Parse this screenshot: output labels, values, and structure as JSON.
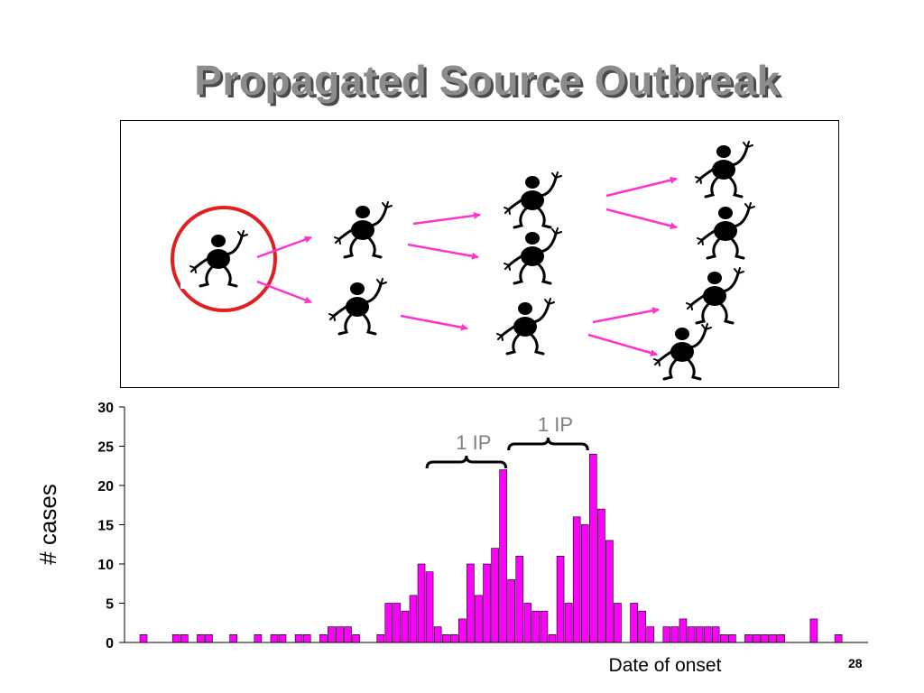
{
  "slide": {
    "title": "Propagated Source Outbreak",
    "page_number": "28"
  },
  "colors": {
    "bar": "#ff00ff",
    "arrow": "#ff33cc",
    "index_circle": "#e02020",
    "figure": "#000000",
    "title": "#8c8c8c"
  },
  "diagram": {
    "generations": [
      {
        "figures": [
          "person-icon"
        ],
        "highlighted": true
      },
      {
        "figures": [
          "person-icon",
          "person-icon"
        ]
      },
      {
        "figures": [
          "person-icon",
          "person-icon",
          "person-icon"
        ]
      },
      {
        "figures": [
          "person-icon",
          "person-icon",
          "person-icon",
          "person-icon"
        ]
      }
    ]
  },
  "chart_data": {
    "type": "bar",
    "x": [
      1,
      2,
      3,
      4,
      5,
      6,
      7,
      8,
      9,
      10,
      11,
      12,
      13,
      14,
      15,
      16,
      17,
      18,
      19,
      20,
      21,
      22,
      23,
      24,
      25,
      26,
      27,
      28,
      29,
      30,
      31,
      32,
      33,
      34,
      35,
      36,
      37,
      38,
      39,
      40,
      41,
      42,
      43,
      44,
      45,
      46,
      47,
      48,
      49,
      50,
      51,
      52,
      53,
      54,
      55,
      56,
      57,
      58,
      59,
      60,
      61,
      62,
      63,
      64,
      65,
      66,
      67,
      68,
      69,
      70,
      71,
      72,
      73,
      74,
      75,
      76,
      77,
      78,
      79,
      80,
      81,
      82,
      83,
      84,
      85,
      86,
      87,
      88
    ],
    "values": [
      1,
      0,
      0,
      0,
      1,
      1,
      0,
      1,
      1,
      0,
      0,
      1,
      0,
      0,
      1,
      0,
      1,
      1,
      0,
      1,
      1,
      0,
      1,
      2,
      2,
      2,
      1,
      0,
      0,
      1,
      5,
      5,
      4,
      6,
      10,
      9,
      2,
      1,
      1,
      3,
      10,
      6,
      10,
      12,
      22,
      8,
      11,
      5,
      4,
      4,
      1,
      11,
      5,
      16,
      15,
      24,
      17,
      13,
      5,
      0,
      5,
      4,
      2,
      0,
      2,
      2,
      3,
      2,
      2,
      2,
      2,
      1,
      1,
      0,
      1,
      1,
      1,
      1,
      1,
      0,
      0,
      0,
      3,
      0,
      0,
      1,
      0,
      0
    ],
    "ylim": [
      0,
      30
    ],
    "yticks": [
      "0",
      "5",
      "10",
      "15",
      "20",
      "25",
      "30"
    ],
    "xlabel": "Date of onset",
    "ylabel": "# cases",
    "grid": false,
    "annotations": [
      {
        "text": "1 IP",
        "from_x": 36,
        "to_x": 45
      },
      {
        "text": "1 IP",
        "from_x": 46,
        "to_x": 55
      }
    ]
  }
}
